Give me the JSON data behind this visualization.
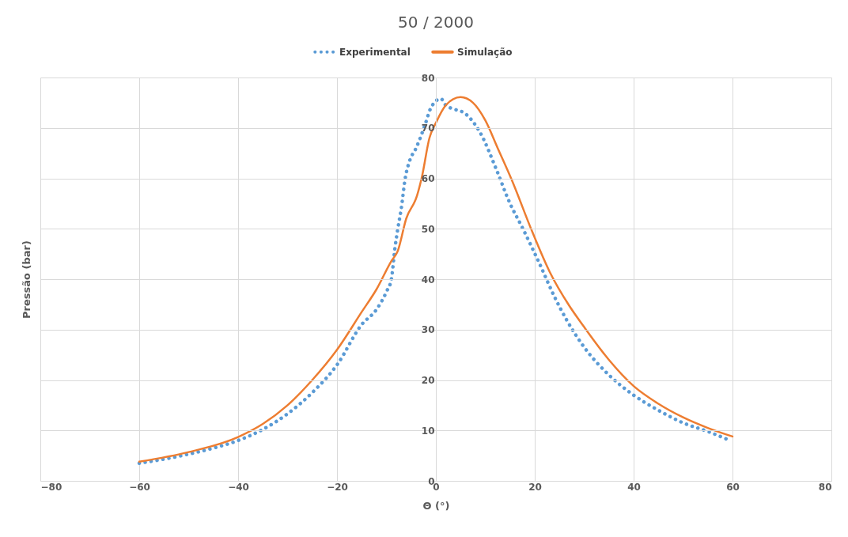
{
  "chart_data": {
    "type": "line",
    "title": "50 / 2000",
    "xlabel": "Θ (°)",
    "ylabel": "Pressão (bar)",
    "xlim": [
      -80,
      80
    ],
    "xticks": [
      -80,
      -60,
      -40,
      -20,
      0,
      20,
      40,
      60,
      80
    ],
    "ylim": [
      0,
      80
    ],
    "yticks": [
      0,
      10,
      20,
      30,
      40,
      50,
      60,
      70,
      80
    ],
    "grid": true,
    "legend": "top",
    "marker": "none",
    "series": [
      {
        "name": "Experimental",
        "color": "#5b9bd5",
        "line_style": "dotted",
        "x": [
          -60,
          -55,
          -50,
          -45,
          -40,
          -35,
          -30,
          -25,
          -20,
          -15,
          -12,
          -10,
          -9,
          -8.3,
          -7.7,
          -7,
          -6.2,
          -5.3,
          -4,
          -2.2,
          -1,
          1,
          2,
          3.8,
          5.7,
          9,
          12.3,
          15,
          17.4,
          21,
          24,
          26.4,
          30,
          35,
          40,
          45,
          50,
          55,
          59
        ],
        "values": [
          3.5,
          4.3,
          5.3,
          6.5,
          8,
          10.2,
          13.3,
          17.5,
          23,
          31,
          34,
          37.5,
          40,
          46,
          50,
          54,
          60,
          63.5,
          66,
          70.6,
          74,
          75.8,
          74.5,
          73.7,
          73,
          69,
          61.6,
          55,
          50.4,
          43,
          36.5,
          32,
          26.5,
          21,
          17,
          14,
          11.5,
          9.8,
          8.2
        ]
      },
      {
        "name": "Simulação",
        "color": "#ed7d31",
        "line_style": "solid",
        "x": [
          -60,
          -50,
          -40,
          -35,
          -30,
          -25,
          -20,
          -15,
          -12,
          -9,
          -7.7,
          -6,
          -3.8,
          -2.8,
          -1.3,
          0,
          2,
          5,
          7.5,
          10,
          12.5,
          15.3,
          19.5,
          23,
          27,
          30,
          35,
          40,
          45,
          50,
          55,
          60
        ],
        "values": [
          3.8,
          5.7,
          8.7,
          11.3,
          15,
          20,
          26,
          33.5,
          38,
          43.6,
          45.6,
          52,
          56.6,
          60.4,
          68,
          71,
          74.5,
          76.1,
          75,
          71.5,
          66,
          59.8,
          49.4,
          41.5,
          34.7,
          30.5,
          24,
          18.8,
          15.3,
          12.6,
          10.5,
          8.8
        ]
      }
    ]
  }
}
